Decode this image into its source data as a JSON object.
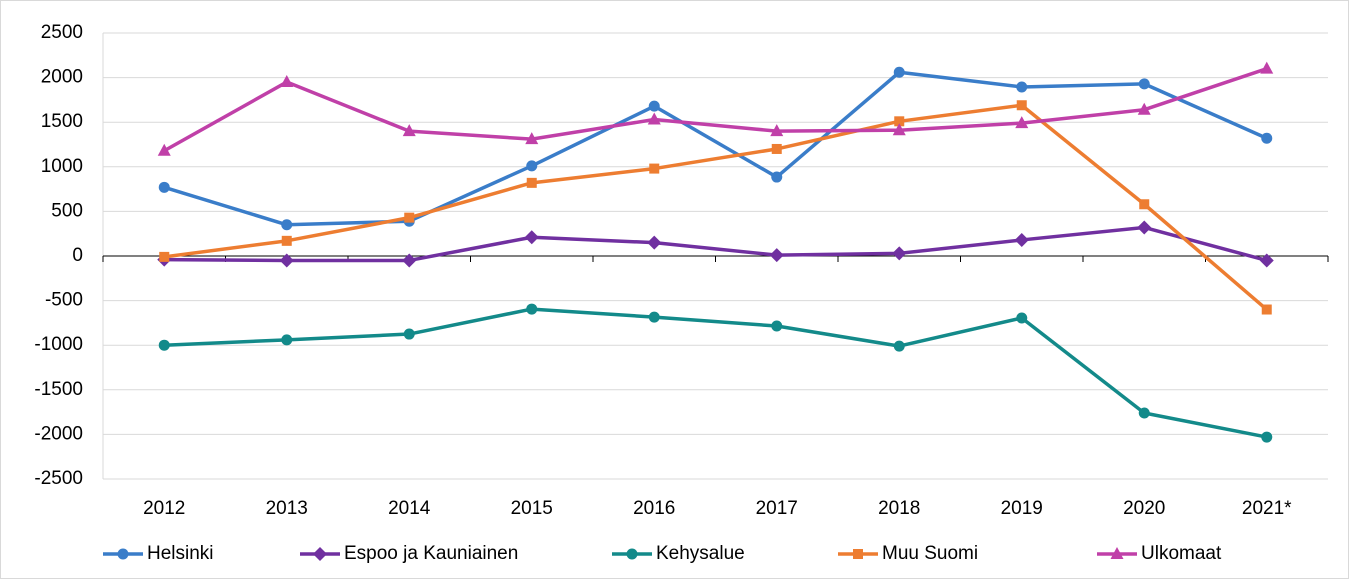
{
  "chart_data": {
    "type": "line",
    "categories": [
      "2012",
      "2013",
      "2014",
      "2015",
      "2016",
      "2017",
      "2018",
      "2019",
      "2020",
      "2021*"
    ],
    "series": [
      {
        "name": "Helsinki",
        "color": "#3a7dc9",
        "marker": "circle",
        "values": [
          770,
          350,
          390,
          1010,
          1680,
          885,
          2060,
          1895,
          1930,
          1320
        ]
      },
      {
        "name": "Espoo ja Kauniainen",
        "color": "#7030a0",
        "marker": "diamond",
        "values": [
          -40,
          -50,
          -50,
          210,
          150,
          10,
          30,
          180,
          320,
          -50
        ]
      },
      {
        "name": "Kehysalue",
        "color": "#138a8a",
        "marker": "circle",
        "values": [
          -1000,
          -940,
          -875,
          -595,
          -685,
          -785,
          -1010,
          -695,
          -1760,
          -2030
        ]
      },
      {
        "name": "Muu Suomi",
        "color": "#ed7d31",
        "marker": "square",
        "values": [
          -10,
          170,
          430,
          820,
          980,
          1200,
          1510,
          1690,
          580,
          -600
        ]
      },
      {
        "name": "Ulkomaat",
        "color": "#c040a8",
        "marker": "triangle",
        "values": [
          1180,
          1950,
          1400,
          1310,
          1530,
          1400,
          1410,
          1490,
          1640,
          2100
        ]
      }
    ],
    "ylim": [
      -2500,
      2500
    ],
    "yticks": [
      -2500,
      -2000,
      -1500,
      -1000,
      -500,
      0,
      500,
      1000,
      1500,
      2000,
      2500
    ],
    "grid": true,
    "legend": "bottom"
  }
}
